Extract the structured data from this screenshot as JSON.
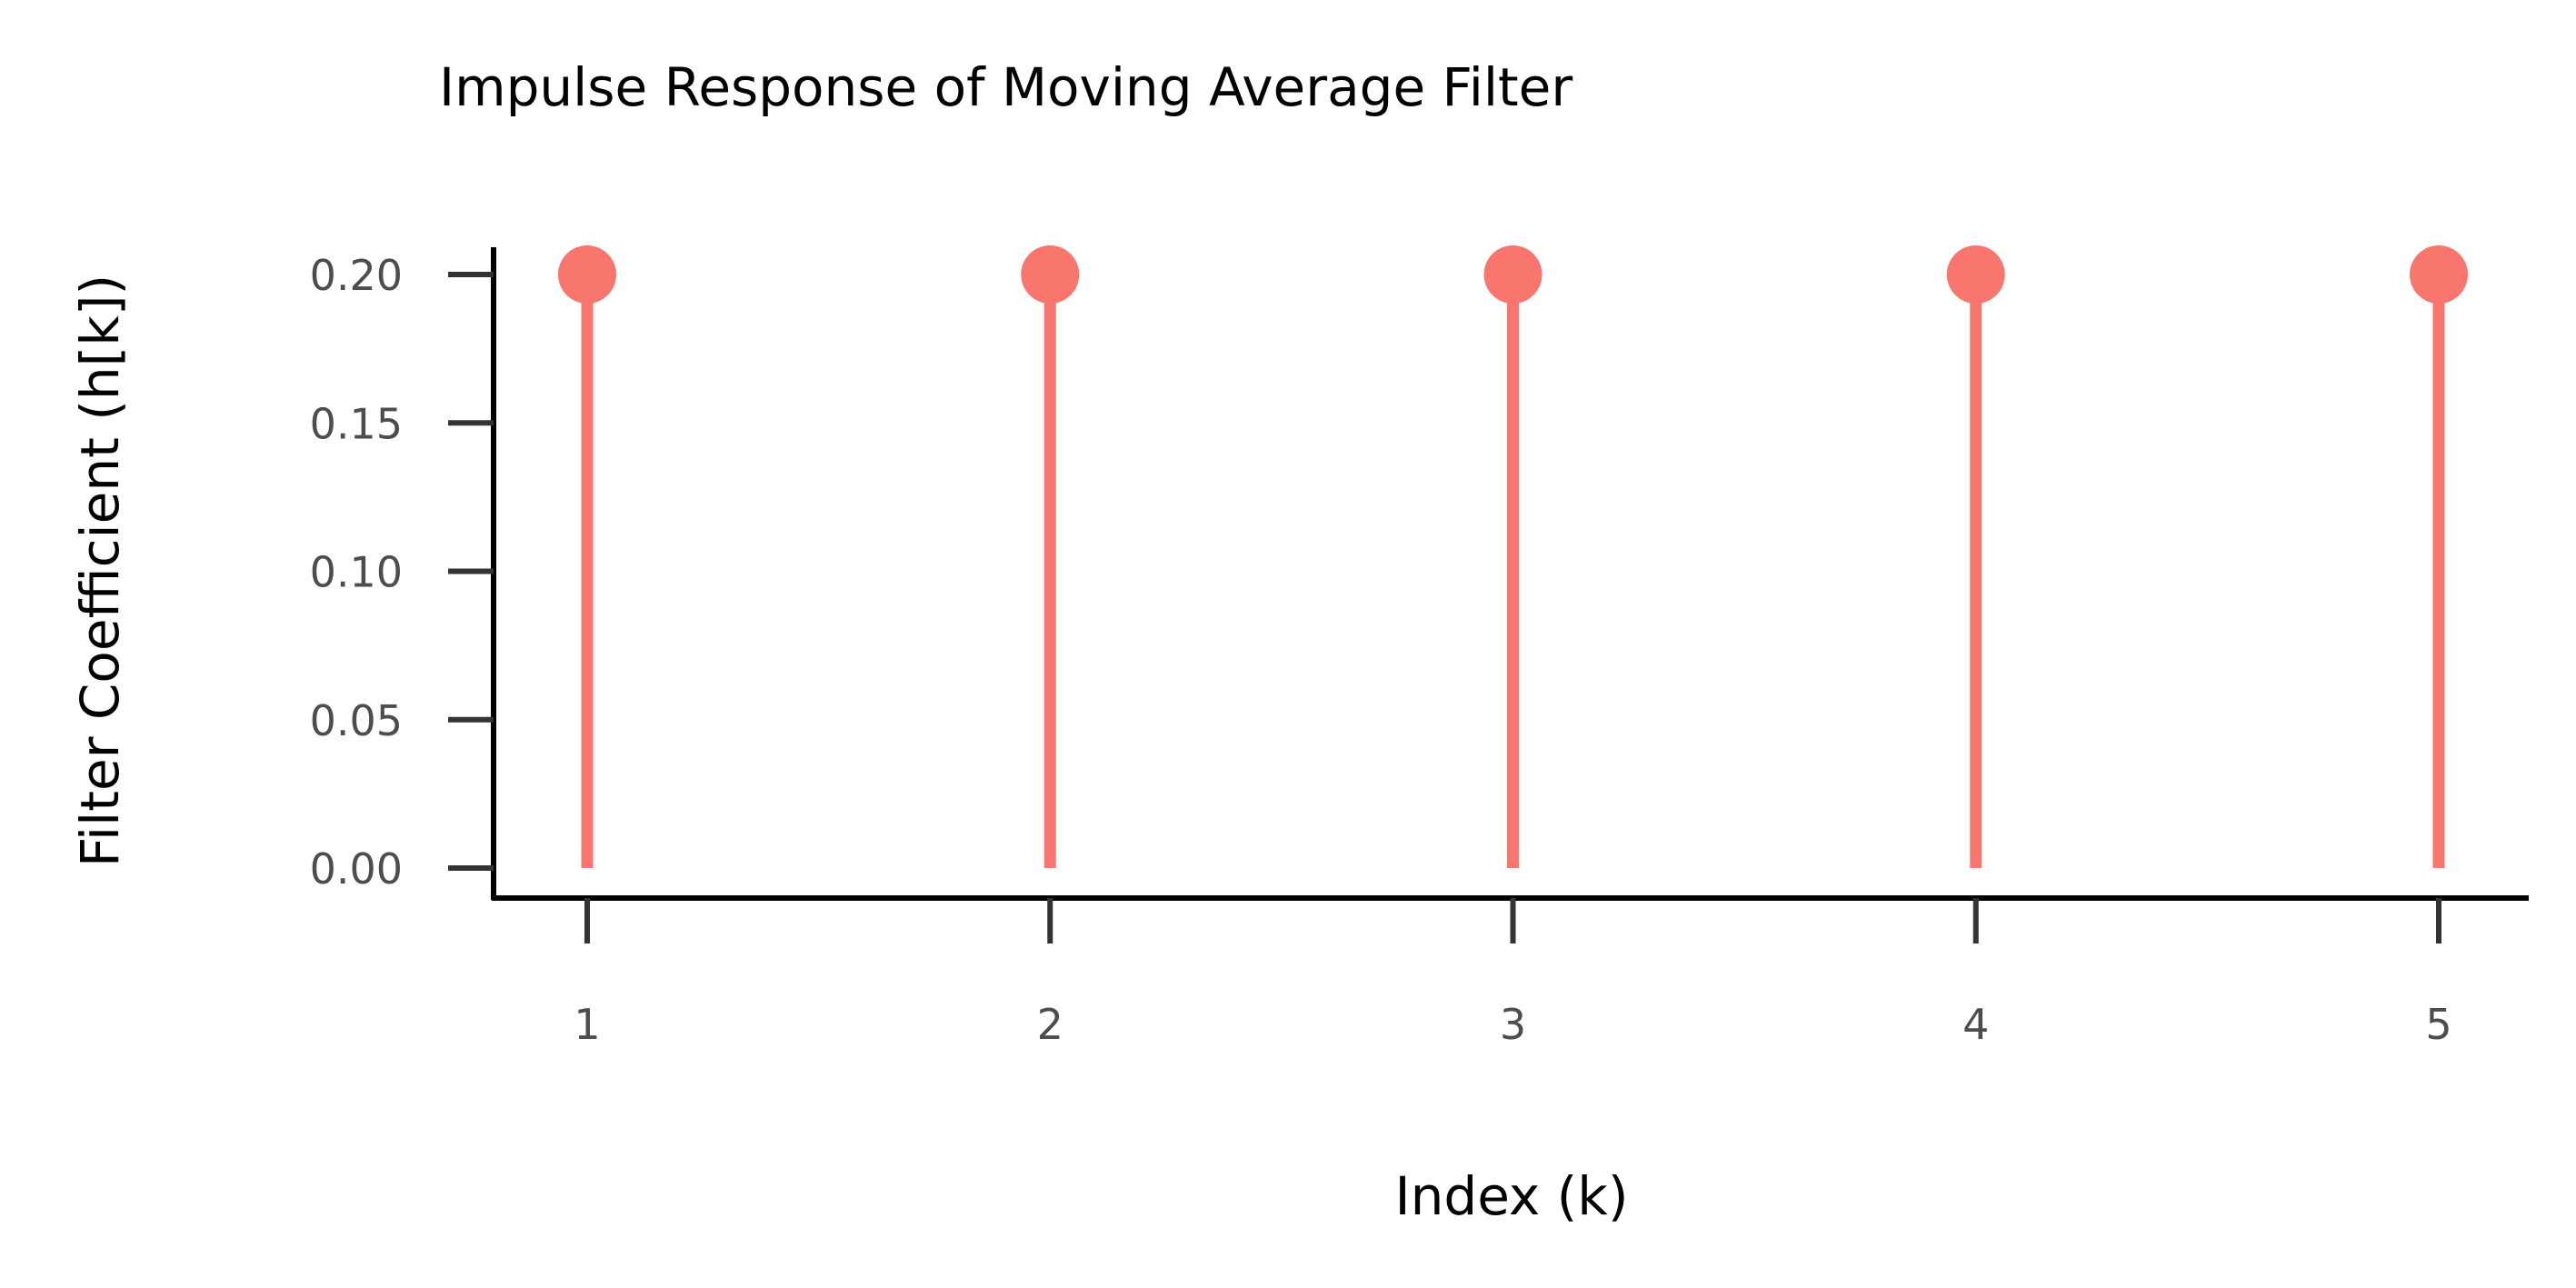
{
  "chart_data": {
    "type": "stem",
    "title": "Impulse Response of Moving Average Filter",
    "xlabel": "Index (k)",
    "ylabel": "Filter Coefficient (h[k])",
    "x": [
      1,
      2,
      3,
      4,
      5
    ],
    "values": [
      0.2,
      0.2,
      0.2,
      0.2,
      0.2
    ],
    "x_ticks": [
      "1",
      "2",
      "3",
      "4",
      "5"
    ],
    "y_ticks": [
      "0.00",
      "0.05",
      "0.10",
      "0.15",
      "0.20"
    ],
    "ylim": [
      0,
      0.2
    ],
    "xlim": [
      1,
      5
    ],
    "grid": false,
    "legend": "none",
    "color": "#F8766D",
    "axis_color": "#000000",
    "tick_color": "#333333"
  }
}
